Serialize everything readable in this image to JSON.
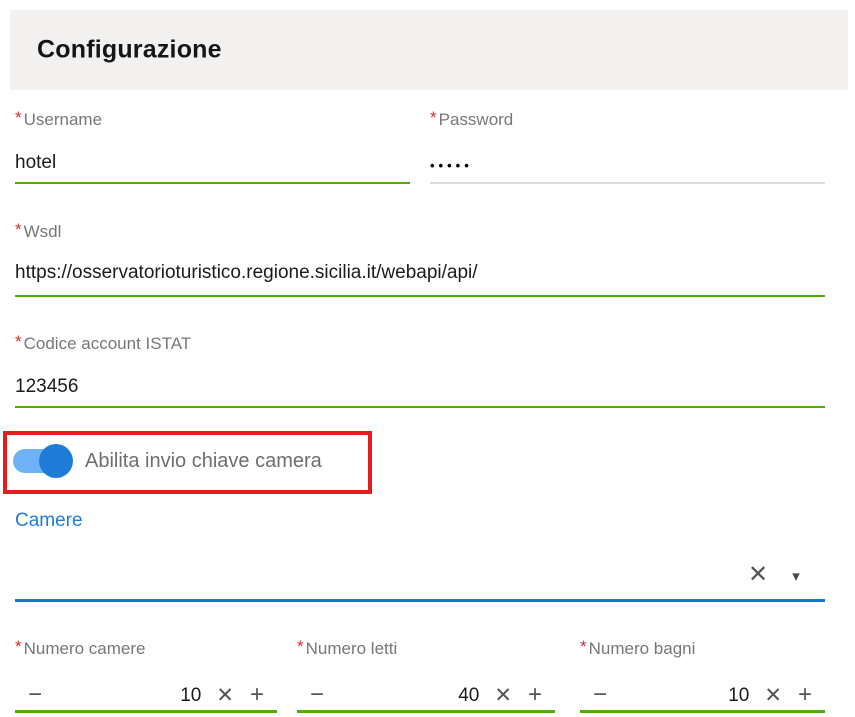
{
  "title": "Configurazione",
  "fields": {
    "username": {
      "required_mark": "*",
      "label": "Username",
      "value": "hotel"
    },
    "password": {
      "required_mark": "*",
      "label": "Password",
      "value": "•••••"
    },
    "wsdl": {
      "required_mark": "*",
      "label": "Wsdl",
      "value": "https://osservatorioturistico.regione.sicilia.it/webapi/api/"
    },
    "codice_account_istat": {
      "required_mark": "*",
      "label": "Codice account ISTAT",
      "value": "123456"
    }
  },
  "toggle": {
    "label": "Abilita invio chiave camera",
    "state": "on"
  },
  "camere": {
    "link_label": "Camere",
    "select_value": ""
  },
  "steppers": [
    {
      "required_mark": "*",
      "label": "Numero camere",
      "value": "10"
    },
    {
      "required_mark": "*",
      "label": "Numero letti",
      "value": "40"
    },
    {
      "required_mark": "*",
      "label": "Numero bagni",
      "value": "10"
    }
  ],
  "icons": {
    "minus": "−",
    "plus": "+",
    "clear": "✕",
    "dropdown_caret": "▾"
  },
  "colors": {
    "underline_green": "#4fae05",
    "underline_blue": "#1976d2",
    "link_blue": "#1e7bd8",
    "toggle_track_blue": "#6db2f5",
    "toggle_thumb_blue": "#1e7cd6",
    "required_red": "#d32f2f",
    "highlight_red": "#e11f1f",
    "header_bg": "#f2f1f0"
  }
}
